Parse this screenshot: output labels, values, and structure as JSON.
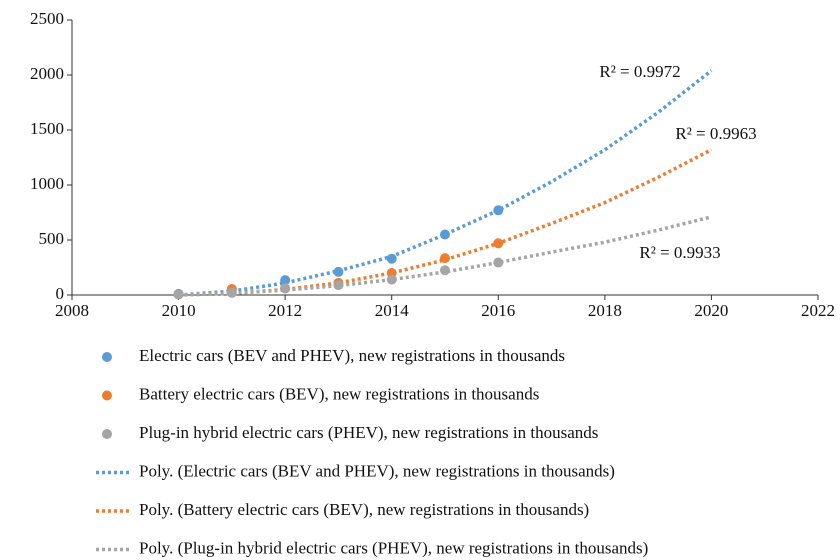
{
  "chart_data": {
    "type": "scatter",
    "xlim": [
      2008,
      2022
    ],
    "xticks": [
      2008,
      2010,
      2012,
      2014,
      2016,
      2018,
      2020,
      2022
    ],
    "ylim": [
      0,
      2500
    ],
    "yticks": [
      0,
      500,
      1000,
      1500,
      2000,
      2500
    ],
    "grid": false,
    "legend": "bottom",
    "series": [
      {
        "name": "Electric cars (BEV and PHEV), new registrations in thousands",
        "color": "#5b9bd5",
        "kind": "points",
        "x": [
          2010,
          2011,
          2012,
          2013,
          2014,
          2015,
          2016
        ],
        "values": [
          10,
          50,
          135,
          210,
          330,
          550,
          770
        ]
      },
      {
        "name": "Battery electric cars (BEV), new registrations in thousands",
        "color": "#ed7d31",
        "kind": "points",
        "x": [
          2010,
          2011,
          2012,
          2013,
          2014,
          2015,
          2016
        ],
        "values": [
          5,
          55,
          60,
          110,
          200,
          335,
          470
        ]
      },
      {
        "name": "Plug-in hybrid electric cars (PHEV), new registrations in thousands",
        "color": "#a5a5a5",
        "kind": "points",
        "x": [
          2010,
          2011,
          2012,
          2013,
          2014,
          2015,
          2016
        ],
        "values": [
          5,
          20,
          60,
          90,
          140,
          225,
          295
        ]
      },
      {
        "name": "Poly. (Electric cars (BEV and PHEV), new registrations in thousands)",
        "color": "#5b9bd5",
        "kind": "trend",
        "x": [
          2010,
          2011,
          2012,
          2013,
          2014,
          2015,
          2016,
          2017,
          2018,
          2019,
          2020
        ],
        "values": [
          0,
          35,
          110,
          220,
          350,
          550,
          770,
          1030,
          1320,
          1660,
          2040
        ]
      },
      {
        "name": "Poly. (Battery electric cars (BEV), new registrations in thousands)",
        "color": "#ed7d31",
        "kind": "trend",
        "x": [
          2010,
          2011,
          2012,
          2013,
          2014,
          2015,
          2016,
          2017,
          2018,
          2019,
          2020
        ],
        "values": [
          0,
          15,
          50,
          110,
          200,
          320,
          470,
          650,
          840,
          1070,
          1320
        ]
      },
      {
        "name": "Poly. (Plug-in hybrid electric cars (PHEV), new registrations in thousands)",
        "color": "#a5a5a5",
        "kind": "trend",
        "x": [
          2010,
          2011,
          2012,
          2013,
          2014,
          2015,
          2016,
          2017,
          2018,
          2019,
          2020
        ],
        "values": [
          0,
          15,
          45,
          85,
          140,
          210,
          295,
          390,
          480,
          590,
          710
        ]
      }
    ],
    "annotations": [
      "R² = 0.9972",
      "R² = 0.9963",
      "R² = 0.9933"
    ]
  }
}
